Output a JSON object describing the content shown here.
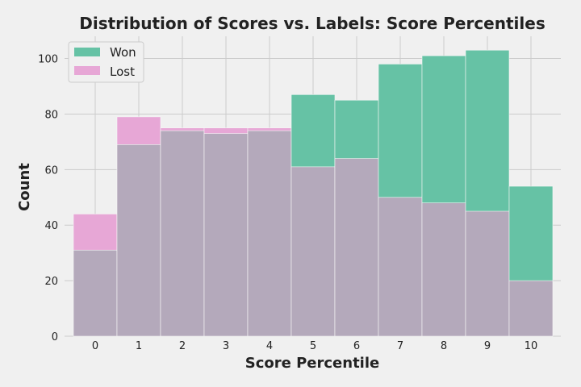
{
  "chart_data": {
    "type": "bar",
    "title": "Distribution of Scores vs. Labels: Score Percentiles",
    "xlabel": "Score Percentile",
    "ylabel": "Count",
    "categories": [
      "0",
      "1",
      "2",
      "3",
      "4",
      "5",
      "6",
      "7",
      "8",
      "9",
      "10"
    ],
    "series": [
      {
        "name": "Won",
        "values": [
          31,
          69,
          74,
          73,
          74,
          87,
          85,
          98,
          101,
          103,
          54
        ],
        "color": "#66c2a5"
      },
      {
        "name": "Lost",
        "values": [
          44,
          79,
          75,
          75,
          75,
          61,
          64,
          50,
          48,
          45,
          20
        ],
        "color": "#e7a7d6"
      }
    ],
    "ylim": [
      0,
      108
    ],
    "yticks": [
      0,
      20,
      40,
      60,
      80,
      100
    ],
    "overlap_color": "#b4a9bb",
    "grid": true,
    "legend": "top-left"
  }
}
